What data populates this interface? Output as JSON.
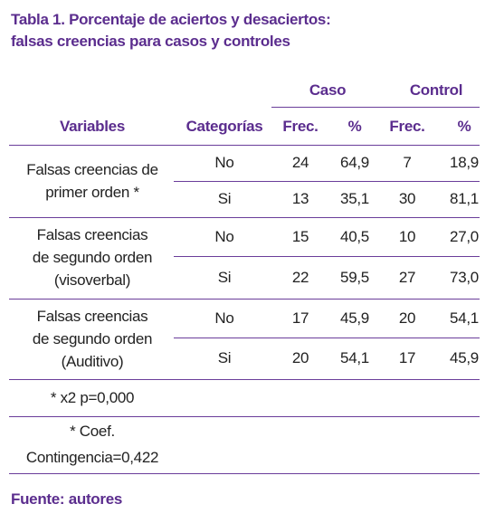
{
  "title": [
    "Tabla 1. Porcentaje de aciertos y desaciertos:",
    "falsas creencias para casos y controles"
  ],
  "table": {
    "group_headers": [
      "Caso",
      "Control"
    ],
    "headers": [
      "Variables",
      "Categorías",
      "Frec.",
      "%",
      "Frec.",
      "%"
    ],
    "groups": [
      {
        "variable": [
          "Falsas creencias de",
          "primer orden *"
        ],
        "rows": [
          [
            "No",
            "24",
            "64,9",
            "7",
            "18,9"
          ],
          [
            "Si",
            "13",
            "35,1",
            "30",
            "81,1"
          ]
        ]
      },
      {
        "variable": [
          "Falsas creencias",
          "de segundo orden",
          "(visoverbal)"
        ],
        "rows": [
          [
            "No",
            "15",
            "40,5",
            "10",
            "27,0"
          ],
          [
            "Si",
            "22",
            "59,5",
            "27",
            "73,0"
          ]
        ]
      },
      {
        "variable": [
          "Falsas creencias",
          "de segundo orden",
          "(Auditivo)"
        ],
        "rows": [
          [
            "No",
            "17",
            "45,9",
            "20",
            "54,1"
          ],
          [
            "Si",
            "20",
            "54,1",
            "17",
            "45,9"
          ]
        ]
      }
    ],
    "notes": [
      [
        "* x2 p=0,000"
      ],
      [
        "* Coef.",
        "Contingencia=0,422"
      ]
    ]
  },
  "source": "Fuente: autores"
}
